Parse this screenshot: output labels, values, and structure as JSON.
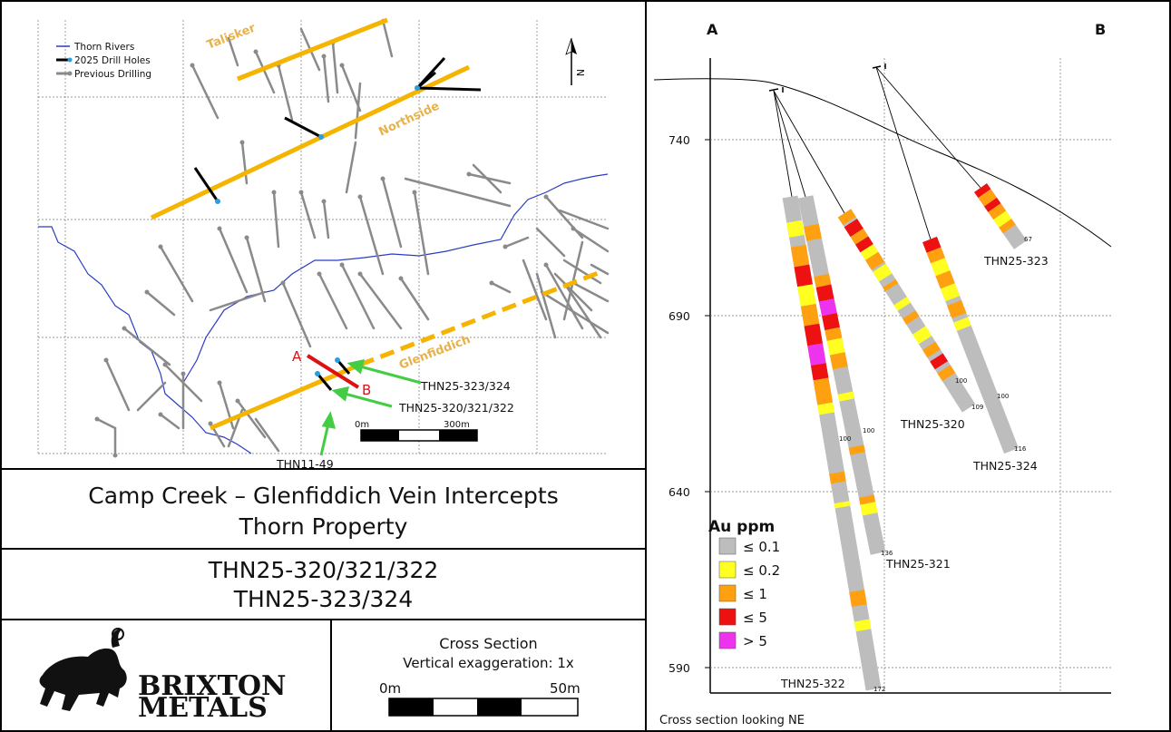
{
  "map": {
    "legend": {
      "items": [
        {
          "label": "Thorn Rivers",
          "color": "#2b3dc4"
        },
        {
          "label": "2025 Drill Holes",
          "color": "#000000"
        },
        {
          "label": "Previous Drilling",
          "color": "#8a8a8a"
        }
      ]
    },
    "vein_labels": {
      "talisker": "Talisker",
      "northside": "Northside",
      "glenfiddich": "Glenfiddich"
    },
    "vein_color": "#f4b400",
    "section_line": {
      "start": "A",
      "end": "B",
      "color": "#dd1111"
    },
    "callouts": [
      "THN25-323/324",
      "THN25-320/321/322",
      "THN11-49"
    ],
    "callout_color": "#44cc44",
    "scalebar": {
      "start": "0m",
      "end": "300m"
    },
    "north_arrow": "N"
  },
  "title": {
    "line1": "Camp Creek – Glenfiddich Vein Intercepts",
    "line2": "Thorn Property"
  },
  "holes": {
    "line1": "THN25-320/321/322",
    "line2": "THN25-323/324"
  },
  "logo": {
    "line1": "BRIXTON",
    "line2": "METALS"
  },
  "scale_box": {
    "title": "Cross Section",
    "subtitle": "Vertical exaggeration: 1x",
    "start": "0m",
    "end": "50m"
  },
  "section": {
    "corner_left": "A",
    "corner_right": "B",
    "footer": "Cross section looking NE",
    "elevation_ticks": [
      "740",
      "690",
      "640",
      "590"
    ],
    "legend_title": "Au ppm",
    "legend": [
      {
        "label": "≤ 0.1",
        "color": "#bdbdbd"
      },
      {
        "label": "≤ 0.2",
        "color": "#ffff22"
      },
      {
        "label": "≤ 1",
        "color": "#ffa010"
      },
      {
        "label": "≤ 5",
        "color": "#ee1111"
      },
      {
        "label": "> 5",
        "color": "#ee33ee"
      }
    ],
    "holes": [
      {
        "name": "THN25-322",
        "end_depth": "172",
        "mark": "100"
      },
      {
        "name": "THN25-321",
        "end_depth": "136",
        "mark": "100"
      },
      {
        "name": "THN25-320",
        "end_depth": "109",
        "mark": "100"
      },
      {
        "name": "THN25-324",
        "end_depth": "116",
        "mark": "100"
      },
      {
        "name": "THN25-323",
        "end_depth": "67",
        "mark": ""
      }
    ]
  }
}
